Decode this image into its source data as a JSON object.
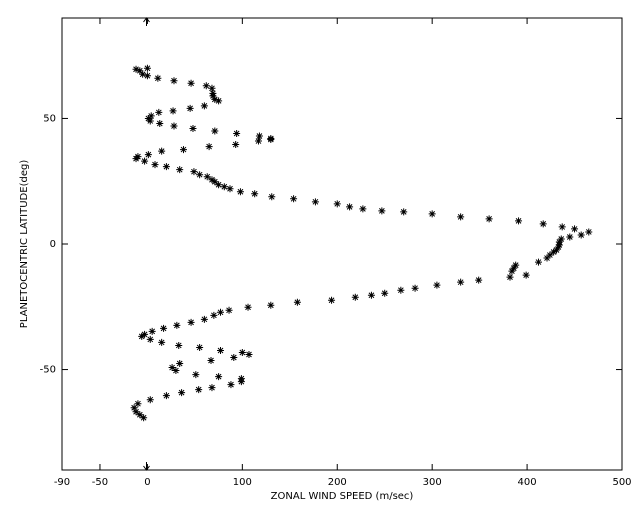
{
  "chart_data": {
    "type": "scatter",
    "x_label": "ZONAL WIND SPEED (m/sec)",
    "y_label": "PLANETOCENTRIC LATITUDE(deg)",
    "xlim": [
      -90,
      500
    ],
    "xticks": [
      -90,
      -50,
      0,
      100,
      200,
      300,
      400,
      500
    ],
    "ylim": [
      -90,
      90
    ],
    "yticks": [
      -50,
      0,
      50
    ],
    "color": "#000000",
    "x": [
      -12,
      -8,
      0,
      -5,
      0,
      11,
      28,
      46,
      62,
      68,
      69,
      69,
      71,
      75,
      60,
      45,
      27,
      12,
      4,
      1,
      3,
      13,
      28,
      48,
      71,
      94,
      118,
      130,
      130,
      117,
      93,
      65,
      38,
      15,
      1,
      -10,
      -12,
      -3,
      8,
      20,
      34,
      49,
      55,
      63,
      68,
      71,
      75,
      81,
      87,
      98,
      113,
      131,
      154,
      177,
      200,
      213,
      227,
      247,
      270,
      300,
      330,
      360,
      391,
      417,
      437,
      450,
      465,
      457,
      445,
      436,
      434,
      434,
      433,
      431,
      428,
      424,
      421,
      412,
      399,
      388,
      386,
      384,
      382,
      349,
      330,
      305,
      282,
      267,
      250,
      236,
      219,
      194,
      158,
      130,
      106,
      86,
      77,
      70,
      60,
      46,
      31,
      17,
      5,
      -3,
      -6,
      3,
      15,
      33,
      55,
      77,
      100,
      107,
      91,
      67,
      34,
      26,
      30,
      51,
      75,
      99,
      99,
      88,
      68,
      54,
      36,
      20,
      3,
      -10,
      -14,
      -12,
      -8,
      -4
    ],
    "values": [
      69.6,
      69,
      70,
      67.6,
      67,
      66,
      65,
      64,
      63,
      62,
      60,
      59,
      57.6,
      57,
      55,
      54,
      53,
      52.4,
      51,
      50,
      49,
      48,
      47,
      46,
      45,
      44,
      43,
      42,
      41.6,
      41,
      39.6,
      38.8,
      37.6,
      37,
      35.6,
      34.8,
      34,
      33,
      31.6,
      30.8,
      29.6,
      28.8,
      27.6,
      26.8,
      25.6,
      24.8,
      23.6,
      22.8,
      22,
      20.8,
      20,
      18.8,
      18,
      16.8,
      16,
      14.8,
      14,
      13.2,
      12.8,
      12,
      10.8,
      10,
      9.2,
      8,
      6.8,
      6,
      4.8,
      3.6,
      2.8,
      2,
      0.8,
      -0.4,
      -1.2,
      -2.4,
      -3.2,
      -4.4,
      -5.6,
      -7.2,
      -12.4,
      -8.4,
      -9.6,
      -10.8,
      -13.2,
      -14.4,
      -15.2,
      -16.4,
      -17.6,
      -18.4,
      -19.6,
      -20.4,
      -21.2,
      -22.4,
      -23.2,
      -24.4,
      -25.2,
      -26.4,
      -27.2,
      -28.4,
      -30,
      -31.2,
      -32.4,
      -33.6,
      -34.8,
      -36,
      -36.8,
      -38,
      -39.2,
      -40.4,
      -41.2,
      -42.4,
      -43.2,
      -44,
      -45.2,
      -46.4,
      -47.6,
      -49.2,
      -50.4,
      -52,
      -52.8,
      -53.6,
      -54.8,
      -56,
      -57.2,
      -58,
      -59.2,
      -60.4,
      -62,
      -63.6,
      -65.2,
      -66.8,
      -68,
      -69.2
    ]
  }
}
